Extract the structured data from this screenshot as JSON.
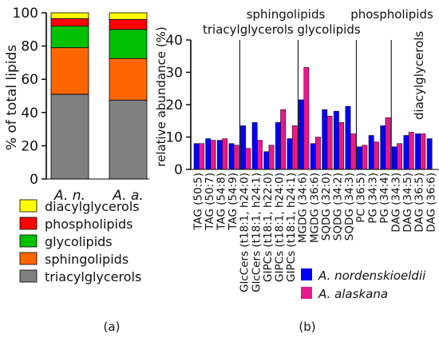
{
  "chart_data": [
    {
      "type": "bar",
      "stacked": true,
      "panel_label": "(a)",
      "ylabel": "% of total lipids",
      "ylim": [
        0,
        100
      ],
      "yticks": [
        0,
        20,
        40,
        60,
        80,
        100
      ],
      "categories": [
        "A. n.",
        "A. a."
      ],
      "series": [
        {
          "name": "triacylglycerols",
          "color": "#808080",
          "values": [
            51,
            47.5
          ]
        },
        {
          "name": "sphingolipids",
          "color": "#ff6600",
          "values": [
            28,
            25
          ]
        },
        {
          "name": "glycolipids",
          "color": "#00c000",
          "values": [
            13,
            17.5
          ]
        },
        {
          "name": "phospholipids",
          "color": "#ff0000",
          "values": [
            4.5,
            6
          ]
        },
        {
          "name": "diacylglycerols",
          "color": "#ffff00",
          "values": [
            3.5,
            4
          ]
        }
      ],
      "legend_order": [
        "diacylglycerols",
        "phospholipids",
        "glycolipids",
        "sphingolipids",
        "triacylglycerols"
      ]
    },
    {
      "type": "bar",
      "panel_label": "(b)",
      "ylabel": "relative abundance (%)",
      "ylim": [
        0,
        40
      ],
      "yticks": [
        0,
        10,
        20,
        30,
        40
      ],
      "categories": [
        "TAG (50:5)",
        "TAG (50:7)",
        "TAG (54:8)",
        "TAG (54:9)",
        "GlcCers (t18:1, h24:0)",
        "GlcCers (t18:1, h24:1)",
        "GIPCs (t18:1, h22:0)",
        "GIPCs (t18:1, h24:0)",
        "GIPCs (t18:1, h24:1)",
        "MGDG (34:6)",
        "MGDG (36:6)",
        "SQDG (32:0)",
        "SQDG (34:2)",
        "SQDG (34:3)",
        "PC (36:5)",
        "PG (34:3)",
        "PG (34:4)",
        "DAG (34:3)",
        "DAG (34:5)",
        "DAG (36:5)",
        "DAG (36:6)"
      ],
      "group_labels": [
        "triacylglycerols",
        "sphingolipids",
        "glycolipids",
        "phospholipids",
        "diacylglycerols"
      ],
      "group_sizes": [
        4,
        5,
        5,
        3,
        4
      ],
      "series": [
        {
          "name": "A. nordenskioeldii",
          "color": "#0000ff",
          "values": [
            8,
            9.5,
            9,
            8,
            13.5,
            14.5,
            5.5,
            14.5,
            9.5,
            21.5,
            8,
            18.5,
            18,
            19.5,
            7,
            10.5,
            13.5,
            7,
            10.5,
            11,
            9.5
          ]
        },
        {
          "name": "A. alaskana",
          "color": "#e8198b",
          "values": [
            8,
            9,
            9.5,
            7.5,
            6.5,
            9,
            7.5,
            18.5,
            13.5,
            31.5,
            10,
            16.5,
            14.5,
            11,
            7.5,
            8.5,
            16,
            8,
            11.5,
            11,
            null
          ]
        }
      ]
    }
  ]
}
